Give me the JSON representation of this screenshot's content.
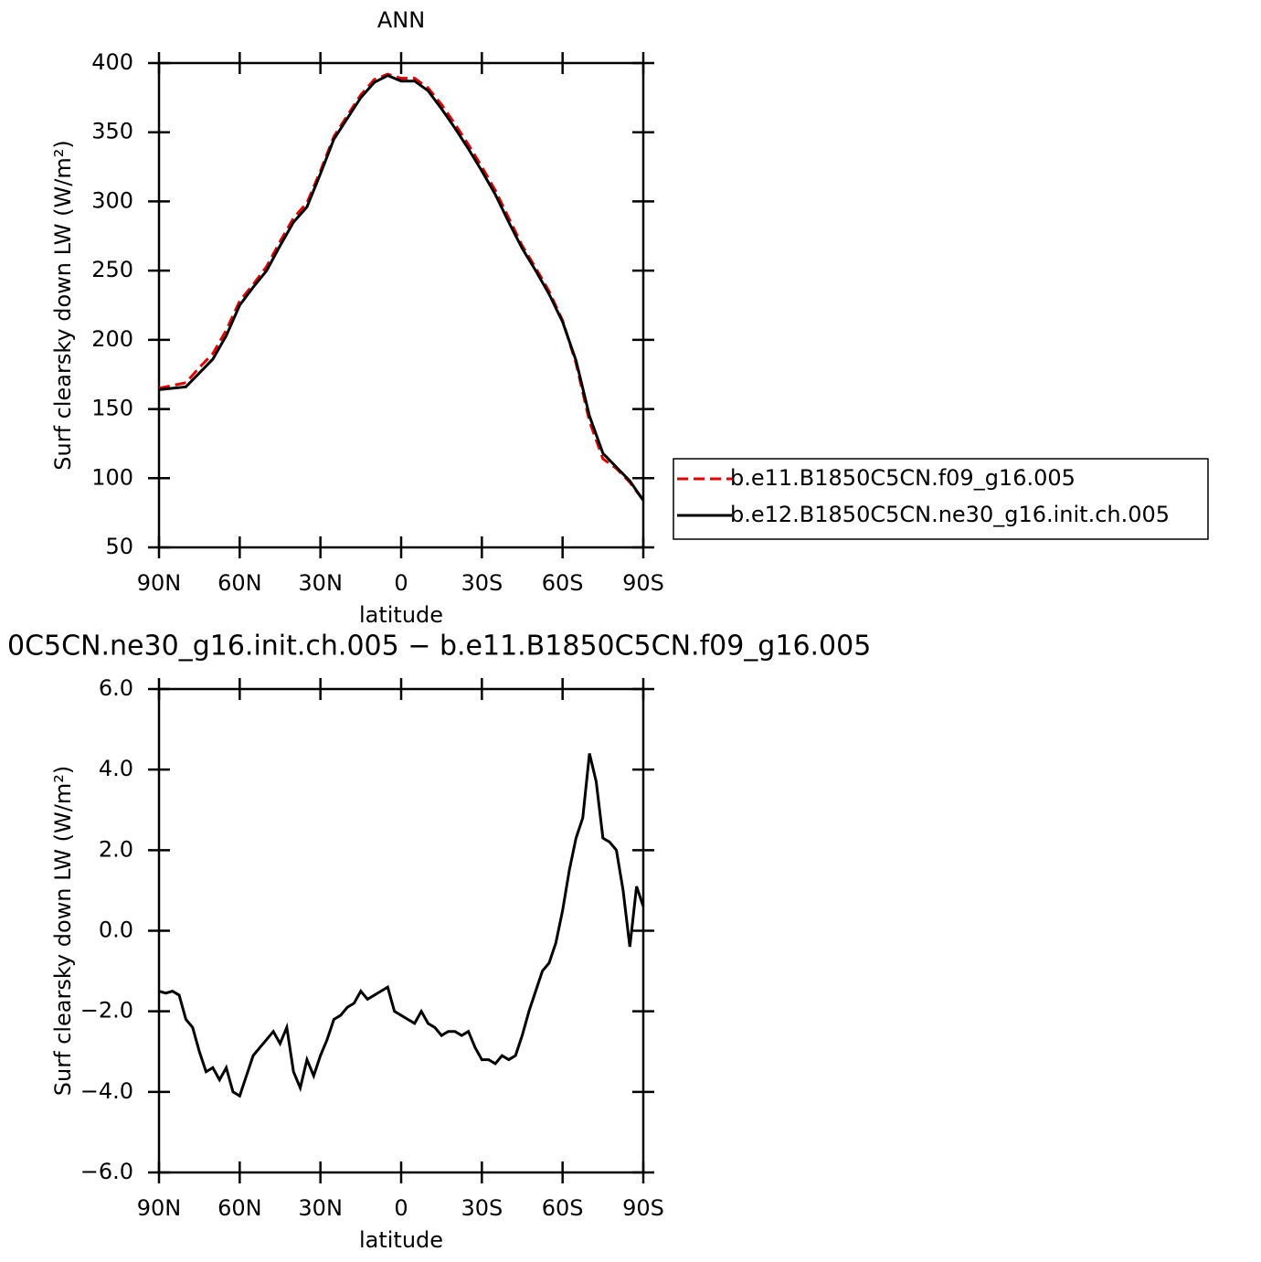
{
  "chart_data": [
    {
      "type": "line",
      "title": "ANN",
      "xlabel": "latitude",
      "ylabel": "Surf clearsky down LW (W/m²)",
      "x": [
        90,
        85,
        80,
        75,
        70,
        65,
        60,
        55,
        50,
        45,
        40,
        35,
        30,
        25,
        20,
        15,
        10,
        5,
        0,
        -5,
        -10,
        -15,
        -20,
        -25,
        -30,
        -35,
        -40,
        -45,
        -50,
        -55,
        -60,
        -65,
        -70,
        -75,
        -80,
        -85,
        -90
      ],
      "series": [
        {
          "name": "b.e11.B1850C5CN.f09_g16.005",
          "color": "#e00000",
          "linestyle": "dashed",
          "values": [
            165,
            167,
            169,
            180,
            190,
            207,
            228,
            240,
            253,
            271,
            288,
            299,
            322,
            347,
            362,
            377,
            388,
            392,
            389,
            389,
            382,
            370,
            356,
            341,
            325,
            308,
            288,
            268,
            252,
            235,
            214,
            183,
            141,
            114,
            107,
            97,
            84
          ]
        },
        {
          "name": "b.e12.B1850C5CN.ne30_g16.init.ch.005",
          "color": "#000000",
          "linestyle": "solid",
          "values": [
            164,
            165,
            166,
            176,
            186,
            203,
            225,
            238,
            250,
            268,
            285,
            296,
            320,
            345,
            360,
            375,
            386,
            391,
            387,
            387,
            380,
            367,
            353,
            338,
            322,
            305,
            285,
            266,
            250,
            233,
            213,
            185,
            145,
            118,
            108,
            98,
            84
          ]
        }
      ],
      "xlim": [
        90,
        -90
      ],
      "xticks": [
        {
          "value": 90,
          "label": "90N"
        },
        {
          "value": 60,
          "label": "60N"
        },
        {
          "value": 30,
          "label": "30N"
        },
        0,
        {
          "value": -30,
          "label": "30S"
        },
        {
          "value": -60,
          "label": "60S"
        },
        {
          "value": -90,
          "label": "90S"
        }
      ],
      "ylim": [
        50,
        400
      ],
      "yticks": [
        50,
        100,
        150,
        200,
        250,
        300,
        350,
        400
      ],
      "legend": "right"
    },
    {
      "type": "line",
      "title": "0C5CN.ne30_g16.init.ch.005 − b.e11.B1850C5CN.f09_g16.005",
      "xlabel": "latitude",
      "ylabel": "Surf clearsky down LW (W/m²)",
      "x": [
        90,
        87.5,
        85,
        82.5,
        80,
        77.5,
        75,
        72.5,
        70,
        67.5,
        65,
        62.5,
        60,
        57.5,
        55,
        52.5,
        50,
        47.5,
        45,
        42.5,
        40,
        37.5,
        35,
        32.5,
        30,
        27.5,
        25,
        22.5,
        20,
        17.5,
        15,
        12.5,
        10,
        7.5,
        5,
        2.5,
        0,
        -2.5,
        -5,
        -7.5,
        -10,
        -12.5,
        -15,
        -17.5,
        -20,
        -22.5,
        -25,
        -27.5,
        -30,
        -32.5,
        -35,
        -37.5,
        -40,
        -42.5,
        -45,
        -47.5,
        -50,
        -52.5,
        -55,
        -57.5,
        -60,
        -62.5,
        -65,
        -67.5,
        -70,
        -72.5,
        -75,
        -77.5,
        -80,
        -82.5,
        -85,
        -87.5,
        -90
      ],
      "series": [
        {
          "color": "#000000",
          "linestyle": "solid",
          "values": [
            -1.5,
            -1.55,
            -1.5,
            -1.6,
            -2.2,
            -2.4,
            -3.0,
            -3.5,
            -3.4,
            -3.7,
            -3.4,
            -4.0,
            -4.1,
            -3.6,
            -3.1,
            -2.9,
            -2.7,
            -2.5,
            -2.8,
            -2.4,
            -3.5,
            -3.9,
            -3.2,
            -3.6,
            -3.1,
            -2.7,
            -2.2,
            -2.1,
            -1.9,
            -1.8,
            -1.5,
            -1.7,
            -1.6,
            -1.5,
            -1.4,
            -2.0,
            -2.1,
            -2.2,
            -2.3,
            -2.0,
            -2.3,
            -2.4,
            -2.6,
            -2.5,
            -2.5,
            -2.6,
            -2.5,
            -2.9,
            -3.2,
            -3.2,
            -3.3,
            -3.1,
            -3.2,
            -3.1,
            -2.6,
            -2.0,
            -1.5,
            -1.0,
            -0.8,
            -0.3,
            0.5,
            1.5,
            2.3,
            2.8,
            4.4,
            3.7,
            2.3,
            2.2,
            2.0,
            1.0,
            -0.4,
            1.1,
            0.6
          ]
        }
      ],
      "xlim": [
        90,
        -90
      ],
      "xticks": [
        {
          "value": 90,
          "label": "90N"
        },
        {
          "value": 60,
          "label": "60N"
        },
        {
          "value": 30,
          "label": "30N"
        },
        0,
        {
          "value": -30,
          "label": "30S"
        },
        {
          "value": -60,
          "label": "60S"
        },
        {
          "value": -90,
          "label": "90S"
        }
      ],
      "ylim": [
        -6,
        6
      ],
      "yticks": [
        {
          "value": -6,
          "label": "−6.0"
        },
        {
          "value": -4,
          "label": "−4.0"
        },
        {
          "value": -2,
          "label": "−2.0"
        },
        {
          "value": 0,
          "label": "0.0"
        },
        {
          "value": 2,
          "label": "2.0"
        },
        {
          "value": 4,
          "label": "4.0"
        },
        {
          "value": 6,
          "label": "6.0"
        }
      ]
    }
  ]
}
